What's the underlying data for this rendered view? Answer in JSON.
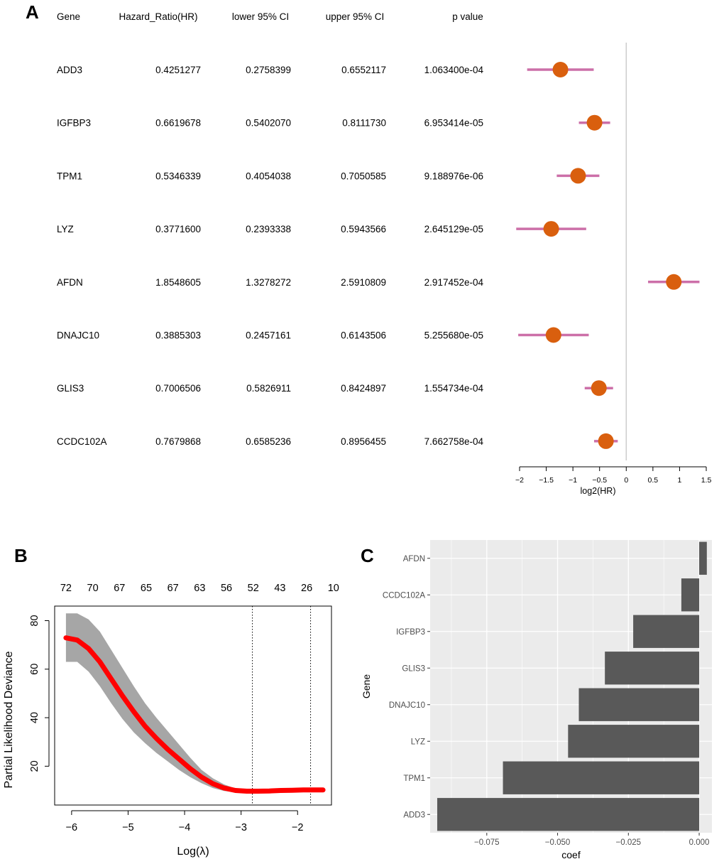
{
  "panels": {
    "a": "A",
    "b": "B",
    "c": "C"
  },
  "colors": {
    "ci_line": "#cc6fa8",
    "point": "#d95f0e",
    "ref_line": "#cccccc",
    "band": "#a6a6a6",
    "curve": "#ff0000",
    "ggplot_panel": "#ebebeb",
    "bar": "#595959"
  },
  "chart_data": [
    {
      "type": "table",
      "panel": "A",
      "columns": [
        "Gene",
        "Hazard_Ratio(HR)",
        "lower 95% CI",
        "upper 95% CI",
        "p value"
      ],
      "rows": [
        [
          "ADD3",
          "0.4251277",
          "0.2758399",
          "0.6552117",
          "1.063400e-04"
        ],
        [
          "IGFBP3",
          "0.6619678",
          "0.5402070",
          "0.8111730",
          "6.953414e-05"
        ],
        [
          "TPM1",
          "0.5346339",
          "0.4054038",
          "0.7050585",
          "9.188976e-06"
        ],
        [
          "LYZ",
          "0.3771600",
          "0.2393338",
          "0.5943566",
          "2.645129e-05"
        ],
        [
          "AFDN",
          "1.8548605",
          "1.3278272",
          "2.5910809",
          "2.917452e-04"
        ],
        [
          "DNAJC10",
          "0.3885303",
          "0.2457161",
          "0.6143506",
          "5.255680e-05"
        ],
        [
          "GLIS3",
          "0.7006506",
          "0.5826911",
          "0.8424897",
          "1.554734e-04"
        ],
        [
          "CCDC102A",
          "0.7679868",
          "0.6585236",
          "0.8956455",
          "7.662758e-04"
        ]
      ]
    },
    {
      "type": "scatter",
      "panel": "A",
      "subtype": "forest",
      "xlabel": "log2(HR)",
      "xlim": [
        -2,
        1.5
      ],
      "xticks": [
        -2,
        -1.5,
        -1,
        -0.5,
        0,
        0.5,
        1,
        1.5
      ],
      "xtick_labels": [
        "−2",
        "−1.5",
        "−1",
        "−0.5",
        "0",
        "0.5",
        "1",
        "1.5"
      ],
      "reference_x": 0,
      "points": [
        {
          "gene": "ADD3",
          "x": -1.234,
          "lo": -1.858,
          "hi": -0.61
        },
        {
          "gene": "IGFBP3",
          "x": -0.595,
          "lo": -0.888,
          "hi": -0.302
        },
        {
          "gene": "TPM1",
          "x": -0.903,
          "lo": -1.303,
          "hi": -0.504
        },
        {
          "gene": "LYZ",
          "x": -1.407,
          "lo": -2.063,
          "hi": -0.751
        },
        {
          "gene": "AFDN",
          "x": 0.891,
          "lo": 0.409,
          "hi": 1.373
        },
        {
          "gene": "DNAJC10",
          "x": -1.364,
          "lo": -2.025,
          "hi": -0.703
        },
        {
          "gene": "GLIS3",
          "x": -0.513,
          "lo": -0.779,
          "hi": -0.247
        },
        {
          "gene": "CCDC102A",
          "x": -0.381,
          "lo": -0.603,
          "hi": -0.159
        }
      ]
    },
    {
      "type": "line",
      "panel": "B",
      "xlabel": "Log(λ)",
      "ylabel": "Partial Likelihood Deviance",
      "xlim": [
        -6.3,
        -1.4
      ],
      "ylim": [
        4,
        86
      ],
      "xticks": [
        -6,
        -5,
        -4,
        -3,
        -2
      ],
      "xtick_labels": [
        "−6",
        "−5",
        "−4",
        "−3",
        "−2"
      ],
      "yticks": [
        20,
        40,
        60,
        80
      ],
      "yticks_labels": [
        "20",
        "40",
        "60",
        "80"
      ],
      "top_axis_labels": [
        "72",
        "70",
        "67",
        "65",
        "67",
        "63",
        "56",
        "52",
        "43",
        "26",
        "10"
      ],
      "vlines": [
        -2.8,
        -1.77
      ],
      "x": [
        -6.1,
        -5.9,
        -5.7,
        -5.5,
        -5.3,
        -5.1,
        -4.9,
        -4.7,
        -4.5,
        -4.3,
        -4.1,
        -3.9,
        -3.7,
        -3.5,
        -3.3,
        -3.1,
        -2.9,
        -2.7,
        -2.5,
        -2.3,
        -2.1,
        -1.9,
        -1.7,
        -1.55
      ],
      "y": [
        72.9,
        72.0,
        68.5,
        63.0,
        56.0,
        49.0,
        42.5,
        36.5,
        31.5,
        27.0,
        23.0,
        19.0,
        15.5,
        12.8,
        11.0,
        10.0,
        9.7,
        9.7,
        9.8,
        10.0,
        10.1,
        10.2,
        10.2,
        10.2
      ],
      "upper": [
        83.0,
        83.0,
        80.5,
        75.5,
        68.0,
        60.5,
        53.0,
        46.0,
        40.0,
        34.5,
        29.0,
        23.5,
        18.5,
        15.0,
        12.5,
        10.8,
        10.4,
        10.4,
        10.5,
        10.7,
        10.9,
        11.0,
        11.0,
        11.0
      ],
      "lower": [
        63.0,
        63.0,
        59.0,
        53.0,
        46.0,
        39.5,
        34.0,
        29.5,
        25.5,
        22.0,
        18.5,
        15.5,
        13.0,
        11.0,
        9.8,
        9.3,
        9.1,
        9.1,
        9.2,
        9.3,
        9.4,
        9.5,
        9.5,
        9.5
      ]
    },
    {
      "type": "bar",
      "panel": "C",
      "orientation": "horizontal",
      "xlabel": "coef",
      "ylabel": "Gene",
      "categories": [
        "ADD3",
        "TPM1",
        "LYZ",
        "DNAJC10",
        "GLIS3",
        "IGFBP3",
        "CCDC102A",
        "AFDN"
      ],
      "values": [
        -0.0925,
        -0.0693,
        -0.0463,
        -0.0425,
        -0.0333,
        -0.0233,
        -0.0063,
        0.0027
      ],
      "xlim": [
        -0.095,
        0.0045
      ],
      "xticks": [
        -0.075,
        -0.05,
        -0.025,
        0
      ],
      "xtick_labels": [
        "−0.075",
        "−0.050",
        "−0.025",
        "0.000"
      ]
    }
  ]
}
